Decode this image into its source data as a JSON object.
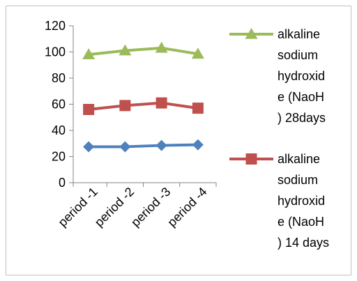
{
  "chart_data": {
    "type": "line",
    "categories": [
      "period -1",
      "period -2",
      "period -3",
      "period -4"
    ],
    "ylim": [
      0,
      120
    ],
    "yticks": [
      0,
      20,
      40,
      60,
      80,
      100,
      120
    ],
    "grid": false,
    "legend_position": "right",
    "series": [
      {
        "name": "alkaline sodium hydroxide (NaoH ) 28days",
        "legend_lines": [
          "alkaline",
          "sodium",
          "hydroxid",
          "e (NaoH",
          ") 28days"
        ],
        "values": [
          98,
          101,
          103,
          98.5
        ],
        "color": "#9bbb59",
        "marker": "triangle",
        "show_in_legend": true
      },
      {
        "name": "alkaline sodium hydroxide (NaoH ) 14 days",
        "legend_lines": [
          "alkaline",
          "sodium",
          "hydroxid",
          "e (NaoH",
          ") 14 days"
        ],
        "values": [
          56,
          59,
          61,
          57
        ],
        "color": "#c0504d",
        "marker": "square",
        "show_in_legend": true
      },
      {
        "name": "",
        "values": [
          27.5,
          27.5,
          28.5,
          29
        ],
        "color": "#4f81bd",
        "marker": "diamond",
        "show_in_legend": false
      }
    ]
  }
}
